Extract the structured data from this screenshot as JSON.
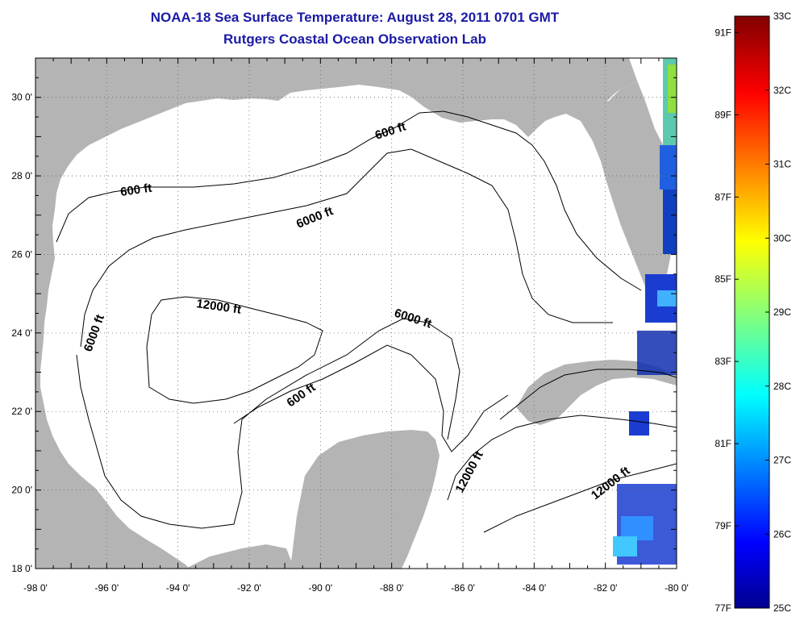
{
  "title": "NOAA-18 Sea Surface Temperature:  August 28, 2011 0701 GMT",
  "subtitle": "Rutgers Coastal Ocean Observation Lab",
  "map": {
    "lon_range": [
      -98,
      -80
    ],
    "lat_range": [
      18,
      31
    ],
    "x_ticks": [
      "-98 0'",
      "-96 0'",
      "-94 0'",
      "-92 0'",
      "-90 0'",
      "-88 0'",
      "-86 0'",
      "-84 0'",
      "-82 0'",
      "-80 0'"
    ],
    "y_ticks": [
      "18 0'",
      "20 0'",
      "22 0'",
      "24 0'",
      "26 0'",
      "28 0'",
      "30 0'"
    ],
    "land_color": "#b4b4b4",
    "ocean_color": "#ffffff",
    "contour_labels": [
      "600 ft",
      "600 ft",
      "600 ft",
      "6000 ft",
      "6000 ft",
      "6000 ft",
      "12000 ft",
      "12000 ft",
      "12000 ft"
    ]
  },
  "colorbar": {
    "range_c": [
      25,
      33
    ],
    "celsius_labels": [
      "33C",
      "32C",
      "31C",
      "30C",
      "29C",
      "28C",
      "27C",
      "26C",
      "25C"
    ],
    "fahrenheit_labels": [
      "91F",
      "89F",
      "87F",
      "85F",
      "83F",
      "81F",
      "79F",
      "77F"
    ]
  }
}
